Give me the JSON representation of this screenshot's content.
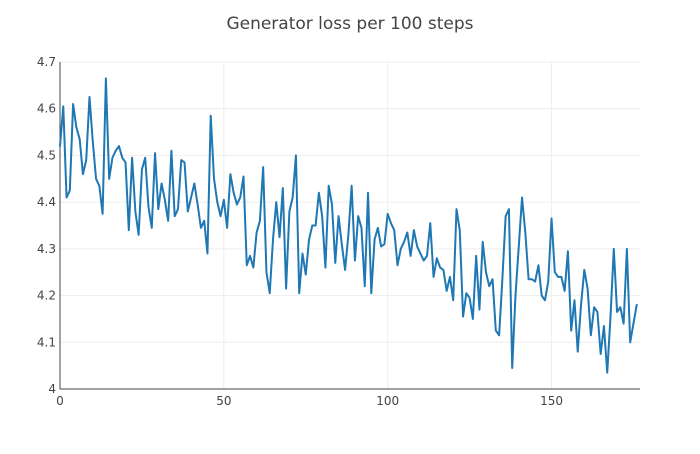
{
  "chart_data": {
    "type": "line",
    "title": "Generator loss per 100 steps",
    "xlabel": "",
    "ylabel": "",
    "xlim": [
      0,
      177
    ],
    "ylim": [
      4.0,
      4.7
    ],
    "x_ticks": [
      0,
      50,
      100,
      150
    ],
    "x_tick_labels": [
      "0",
      "50",
      "100",
      "150"
    ],
    "y_ticks": [
      4.0,
      4.1,
      4.2,
      4.3,
      4.4,
      4.5,
      4.6,
      4.7
    ],
    "y_tick_labels": [
      "4",
      "4.1",
      "4.2",
      "4.3",
      "4.4",
      "4.5",
      "4.6",
      "4.7"
    ],
    "grid": true,
    "legend": false,
    "line_color": "#1f77b4",
    "series": [
      {
        "values": [
          4.52,
          4.605,
          4.41,
          4.425,
          4.61,
          4.56,
          4.535,
          4.46,
          4.49,
          4.625,
          4.53,
          4.45,
          4.435,
          4.375,
          4.665,
          4.45,
          4.495,
          4.51,
          4.52,
          4.495,
          4.485,
          4.34,
          4.495,
          4.38,
          4.33,
          4.47,
          4.495,
          4.39,
          4.345,
          4.505,
          4.385,
          4.44,
          4.405,
          4.36,
          4.51,
          4.37,
          4.385,
          4.49,
          4.485,
          4.38,
          4.41,
          4.44,
          4.395,
          4.345,
          4.36,
          4.29,
          4.585,
          4.45,
          4.4,
          4.37,
          4.405,
          4.345,
          4.46,
          4.42,
          4.395,
          4.41,
          4.455,
          4.265,
          4.285,
          4.26,
          4.335,
          4.36,
          4.475,
          4.25,
          4.205,
          4.32,
          4.4,
          4.325,
          4.43,
          4.215,
          4.38,
          4.41,
          4.5,
          4.205,
          4.29,
          4.245,
          4.32,
          4.35,
          4.35,
          4.42,
          4.37,
          4.26,
          4.435,
          4.395,
          4.27,
          4.37,
          4.31,
          4.255,
          4.33,
          4.435,
          4.275,
          4.37,
          4.345,
          4.22,
          4.42,
          4.205,
          4.32,
          4.345,
          4.305,
          4.31,
          4.375,
          4.355,
          4.34,
          4.265,
          4.3,
          4.315,
          4.335,
          4.285,
          4.34,
          4.305,
          4.29,
          4.275,
          4.285,
          4.355,
          4.24,
          4.28,
          4.26,
          4.255,
          4.21,
          4.24,
          4.19,
          4.385,
          4.34,
          4.155,
          4.205,
          4.195,
          4.15,
          4.285,
          4.17,
          4.315,
          4.25,
          4.22,
          4.235,
          4.125,
          4.115,
          4.235,
          4.37,
          4.385,
          4.045,
          4.2,
          4.305,
          4.41,
          4.335,
          4.235,
          4.235,
          4.23,
          4.265,
          4.2,
          4.19,
          4.23,
          4.365,
          4.25,
          4.24,
          4.24,
          4.21,
          4.295,
          4.125,
          4.19,
          4.08,
          4.18,
          4.255,
          4.215,
          4.115,
          4.175,
          4.165,
          4.075,
          4.135,
          4.035,
          4.155,
          4.3,
          4.165,
          4.175,
          4.14,
          4.3,
          4.1,
          4.14,
          4.18
        ]
      }
    ]
  }
}
